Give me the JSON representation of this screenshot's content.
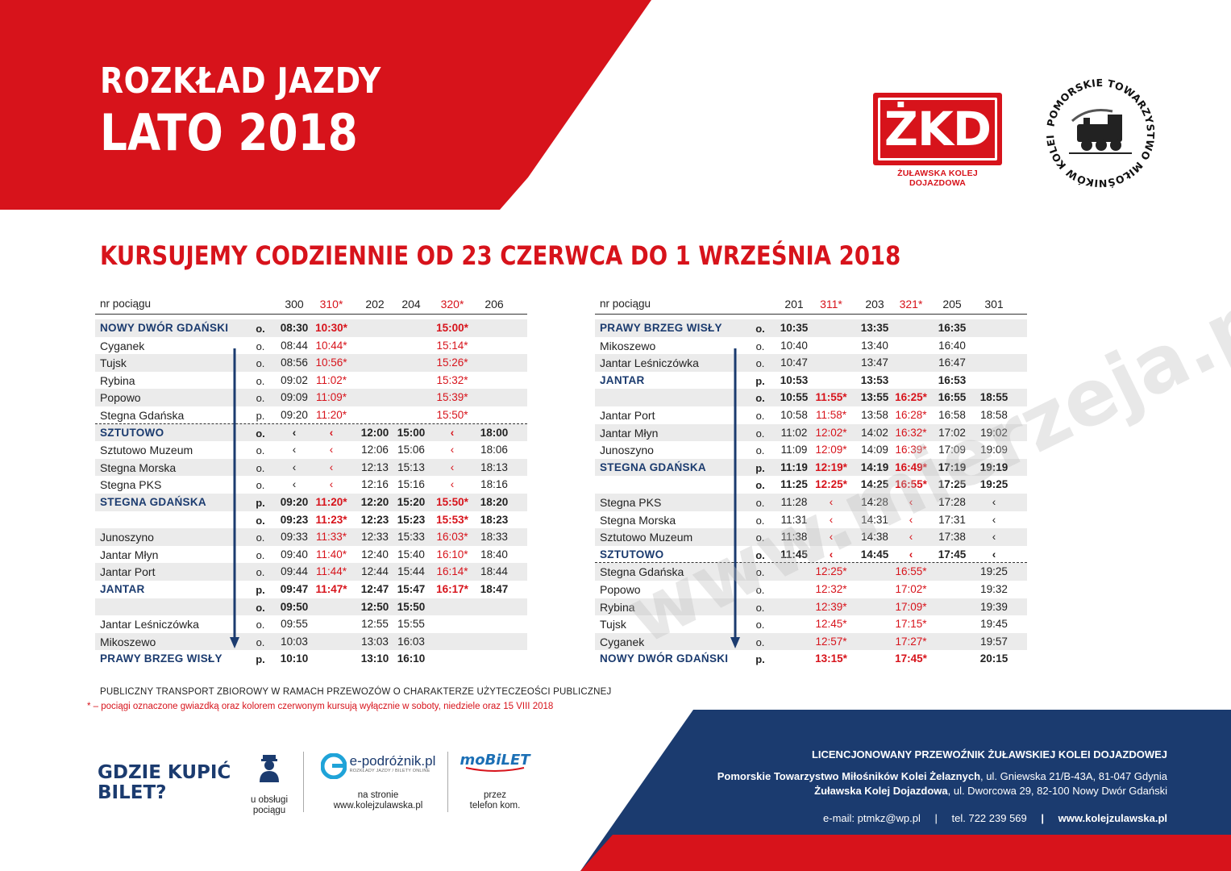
{
  "header": {
    "title_line1": "ROZKŁAD JAZDY",
    "title_line2": "LATO 2018",
    "zkd_logo_text": "ŻKD",
    "zkd_logo_subtitle": "ŻUŁAWSKA KOLEJ DOJAZDOWA",
    "ptmkz_logo_text": "POMORSKIE TOWARZYSTWO MIŁOŚNIKÓW KOLEI ŻELAZNYCH"
  },
  "subtitle": "KURSUJEMY CODZIENNIE OD 23 CZERWCA DO 1 WRZEŚNIA 2018",
  "colors": {
    "red": "#d7131b",
    "navy": "#1b3b6f",
    "shade": "#ebebeb"
  },
  "left_table": {
    "label": "nr pociągu",
    "trains": [
      "300",
      "310*",
      "202",
      "204",
      "320*",
      "206"
    ],
    "train_red": [
      false,
      true,
      false,
      false,
      true,
      false
    ],
    "rows": [
      {
        "station": "NOWY DWÓR GDAŃSKI",
        "major": true,
        "op": "o.",
        "times": [
          "08:30",
          "10:30*",
          "",
          "",
          "15:00*",
          ""
        ]
      },
      {
        "station": "Cyganek",
        "major": false,
        "op": "o.",
        "times": [
          "08:44",
          "10:44*",
          "",
          "",
          "15:14*",
          ""
        ]
      },
      {
        "station": "Tujsk",
        "major": false,
        "op": "o.",
        "times": [
          "08:56",
          "10:56*",
          "",
          "",
          "15:26*",
          ""
        ]
      },
      {
        "station": "Rybina",
        "major": false,
        "op": "o.",
        "times": [
          "09:02",
          "11:02*",
          "",
          "",
          "15:32*",
          ""
        ]
      },
      {
        "station": "Popowo",
        "major": false,
        "op": "o.",
        "times": [
          "09:09",
          "11:09*",
          "",
          "",
          "15:39*",
          ""
        ]
      },
      {
        "station": "Stegna Gdańska",
        "major": false,
        "op": "p.",
        "times": [
          "09:20",
          "11:20*",
          "",
          "",
          "15:50*",
          ""
        ]
      },
      {
        "station": "SZTUTOWO",
        "major": true,
        "op": "o.",
        "times": [
          "‹",
          "‹",
          "12:00",
          "15:00",
          "‹",
          "18:00"
        ]
      },
      {
        "station": "Sztutowo Muzeum",
        "major": false,
        "op": "o.",
        "times": [
          "‹",
          "‹",
          "12:06",
          "15:06",
          "‹",
          "18:06"
        ]
      },
      {
        "station": "Stegna Morska",
        "major": false,
        "op": "o.",
        "times": [
          "‹",
          "‹",
          "12:13",
          "15:13",
          "‹",
          "18:13"
        ]
      },
      {
        "station": "Stegna PKS",
        "major": false,
        "op": "o.",
        "times": [
          "‹",
          "‹",
          "12:16",
          "15:16",
          "‹",
          "18:16"
        ]
      },
      {
        "station": "STEGNA GDAŃSKA",
        "major": true,
        "op": "p.",
        "times": [
          "09:20",
          "11:20*",
          "12:20",
          "15:20",
          "15:50*",
          "18:20"
        ]
      },
      {
        "station": "",
        "major": true,
        "op": "o.",
        "times": [
          "09:23",
          "11:23*",
          "12:23",
          "15:23",
          "15:53*",
          "18:23"
        ]
      },
      {
        "station": "Junoszyno",
        "major": false,
        "op": "o.",
        "times": [
          "09:33",
          "11:33*",
          "12:33",
          "15:33",
          "16:03*",
          "18:33"
        ]
      },
      {
        "station": "Jantar Młyn",
        "major": false,
        "op": "o.",
        "times": [
          "09:40",
          "11:40*",
          "12:40",
          "15:40",
          "16:10*",
          "18:40"
        ]
      },
      {
        "station": "Jantar Port",
        "major": false,
        "op": "o.",
        "times": [
          "09:44",
          "11:44*",
          "12:44",
          "15:44",
          "16:14*",
          "18:44"
        ]
      },
      {
        "station": "JANTAR",
        "major": true,
        "op": "p.",
        "times": [
          "09:47",
          "11:47*",
          "12:47",
          "15:47",
          "16:17*",
          "18:47"
        ]
      },
      {
        "station": "",
        "major": true,
        "op": "o.",
        "times": [
          "09:50",
          "",
          "12:50",
          "15:50",
          "",
          ""
        ]
      },
      {
        "station": "Jantar Leśniczówka",
        "major": false,
        "op": "o.",
        "times": [
          "09:55",
          "",
          "12:55",
          "15:55",
          "",
          ""
        ]
      },
      {
        "station": "Mikoszewo",
        "major": false,
        "op": "o.",
        "times": [
          "10:03",
          "",
          "13:03",
          "16:03",
          "",
          ""
        ]
      },
      {
        "station": "PRAWY BRZEG WISŁY",
        "major": true,
        "op": "p.",
        "times": [
          "10:10",
          "",
          "13:10",
          "16:10",
          "",
          ""
        ]
      }
    ]
  },
  "right_table": {
    "label": "nr pociągu",
    "trains": [
      "201",
      "311*",
      "203",
      "321*",
      "205",
      "301"
    ],
    "train_red": [
      false,
      true,
      false,
      true,
      false,
      false
    ],
    "rows": [
      {
        "station": "PRAWY BRZEG WISŁY",
        "major": true,
        "op": "o.",
        "times": [
          "10:35",
          "",
          "13:35",
          "",
          "16:35",
          ""
        ]
      },
      {
        "station": "Mikoszewo",
        "major": false,
        "op": "o.",
        "times": [
          "10:40",
          "",
          "13:40",
          "",
          "16:40",
          ""
        ]
      },
      {
        "station": "Jantar Leśniczówka",
        "major": false,
        "op": "o.",
        "times": [
          "10:47",
          "",
          "13:47",
          "",
          "16:47",
          ""
        ]
      },
      {
        "station": "JANTAR",
        "major": true,
        "op": "p.",
        "times": [
          "10:53",
          "",
          "13:53",
          "",
          "16:53",
          ""
        ]
      },
      {
        "station": "",
        "major": true,
        "op": "o.",
        "times": [
          "10:55",
          "11:55*",
          "13:55",
          "16:25*",
          "16:55",
          "18:55"
        ]
      },
      {
        "station": "Jantar Port",
        "major": false,
        "op": "o.",
        "times": [
          "10:58",
          "11:58*",
          "13:58",
          "16:28*",
          "16:58",
          "18:58"
        ]
      },
      {
        "station": "Jantar Młyn",
        "major": false,
        "op": "o.",
        "times": [
          "11:02",
          "12:02*",
          "14:02",
          "16:32*",
          "17:02",
          "19:02"
        ]
      },
      {
        "station": "Junoszyno",
        "major": false,
        "op": "o.",
        "times": [
          "11:09",
          "12:09*",
          "14:09",
          "16:39*",
          "17:09",
          "19:09"
        ]
      },
      {
        "station": "STEGNA GDAŃSKA",
        "major": true,
        "op": "p.",
        "times": [
          "11:19",
          "12:19*",
          "14:19",
          "16:49*",
          "17:19",
          "19:19"
        ]
      },
      {
        "station": "",
        "major": true,
        "op": "o.",
        "times": [
          "11:25",
          "12:25*",
          "14:25",
          "16:55*",
          "17:25",
          "19:25"
        ]
      },
      {
        "station": "Stegna PKS",
        "major": false,
        "op": "o.",
        "times": [
          "11:28",
          "‹",
          "14:28",
          "‹",
          "17:28",
          "‹"
        ]
      },
      {
        "station": "Stegna Morska",
        "major": false,
        "op": "o.",
        "times": [
          "11:31",
          "‹",
          "14:31",
          "‹",
          "17:31",
          "‹"
        ]
      },
      {
        "station": "Sztutowo Muzeum",
        "major": false,
        "op": "o.",
        "times": [
          "11:38",
          "‹",
          "14:38",
          "‹",
          "17:38",
          "‹"
        ]
      },
      {
        "station": "SZTUTOWO",
        "major": true,
        "op": "o.",
        "times": [
          "11:45",
          "‹",
          "14:45",
          "‹",
          "17:45",
          "‹"
        ]
      },
      {
        "station": "Stegna Gdańska",
        "major": false,
        "op": "o.",
        "times": [
          "",
          "12:25*",
          "",
          "16:55*",
          "",
          "19:25"
        ]
      },
      {
        "station": "Popowo",
        "major": false,
        "op": "o.",
        "times": [
          "",
          "12:32*",
          "",
          "17:02*",
          "",
          "19:32"
        ]
      },
      {
        "station": "Rybina",
        "major": false,
        "op": "o.",
        "times": [
          "",
          "12:39*",
          "",
          "17:09*",
          "",
          "19:39"
        ]
      },
      {
        "station": "Tujsk",
        "major": false,
        "op": "o.",
        "times": [
          "",
          "12:45*",
          "",
          "17:15*",
          "",
          "19:45"
        ]
      },
      {
        "station": "Cyganek",
        "major": false,
        "op": "o.",
        "times": [
          "",
          "12:57*",
          "",
          "17:27*",
          "",
          "19:57"
        ]
      },
      {
        "station": "NOWY DWÓR GDAŃSKI",
        "major": true,
        "op": "p.",
        "times": [
          "",
          "13:15*",
          "",
          "17:45*",
          "",
          "20:15"
        ]
      }
    ]
  },
  "notes": {
    "line1": "PUBLICZNY  TRANSPORT ZBIOROWY W RAMACH PRZEWOZÓW O CHARAKTERZE UŻYTECZEOŚCI PUBLICZNEJ",
    "line2": "* – pociągi oznaczone gwiazdką oraz kolorem czerwonym kursują wyłącznie w soboty, niedziele oraz 15 VIII 2018"
  },
  "buy": {
    "title_line1": "GDZIE KUPIĆ",
    "title_line2": "BILET?",
    "conductor_line1": "u obsługi",
    "conductor_line2": "pociągu",
    "epod_logo": "e-podróżnik.pl",
    "epod_tagline": "ROZKŁADY JAZDY / BILETY ONLINE",
    "epod_line1": "na stronie",
    "epod_line2": "www.kolejzulawska.pl",
    "mobilet_logo": "moBiLET",
    "mobilet_line1": "przez",
    "mobilet_line2": "telefon kom."
  },
  "license": {
    "heading": "LICENCJONOWANY PRZEWOŹNIK ŻUŁAWSKIEJ KOLEI DOJAZDOWEJ",
    "org1_name": "Pomorskie Towarzystwo Miłośników Kolei Żelaznych",
    "org1_addr": ", ul. Gniewska 21/B-43A, 81-047 Gdynia",
    "org2_name": "Żuławska Kolej Dojazdowa",
    "org2_addr": ", ul. Dworcowa 29, 82-100 Nowy Dwór Gdański",
    "email": "e-mail: ptmkz@wp.pl",
    "sep1": "|",
    "phone": "tel. 722  239  569",
    "sep2": "|",
    "website": "www.kolejzulawska.pl"
  },
  "watermark": "www.mierzeja.pl"
}
